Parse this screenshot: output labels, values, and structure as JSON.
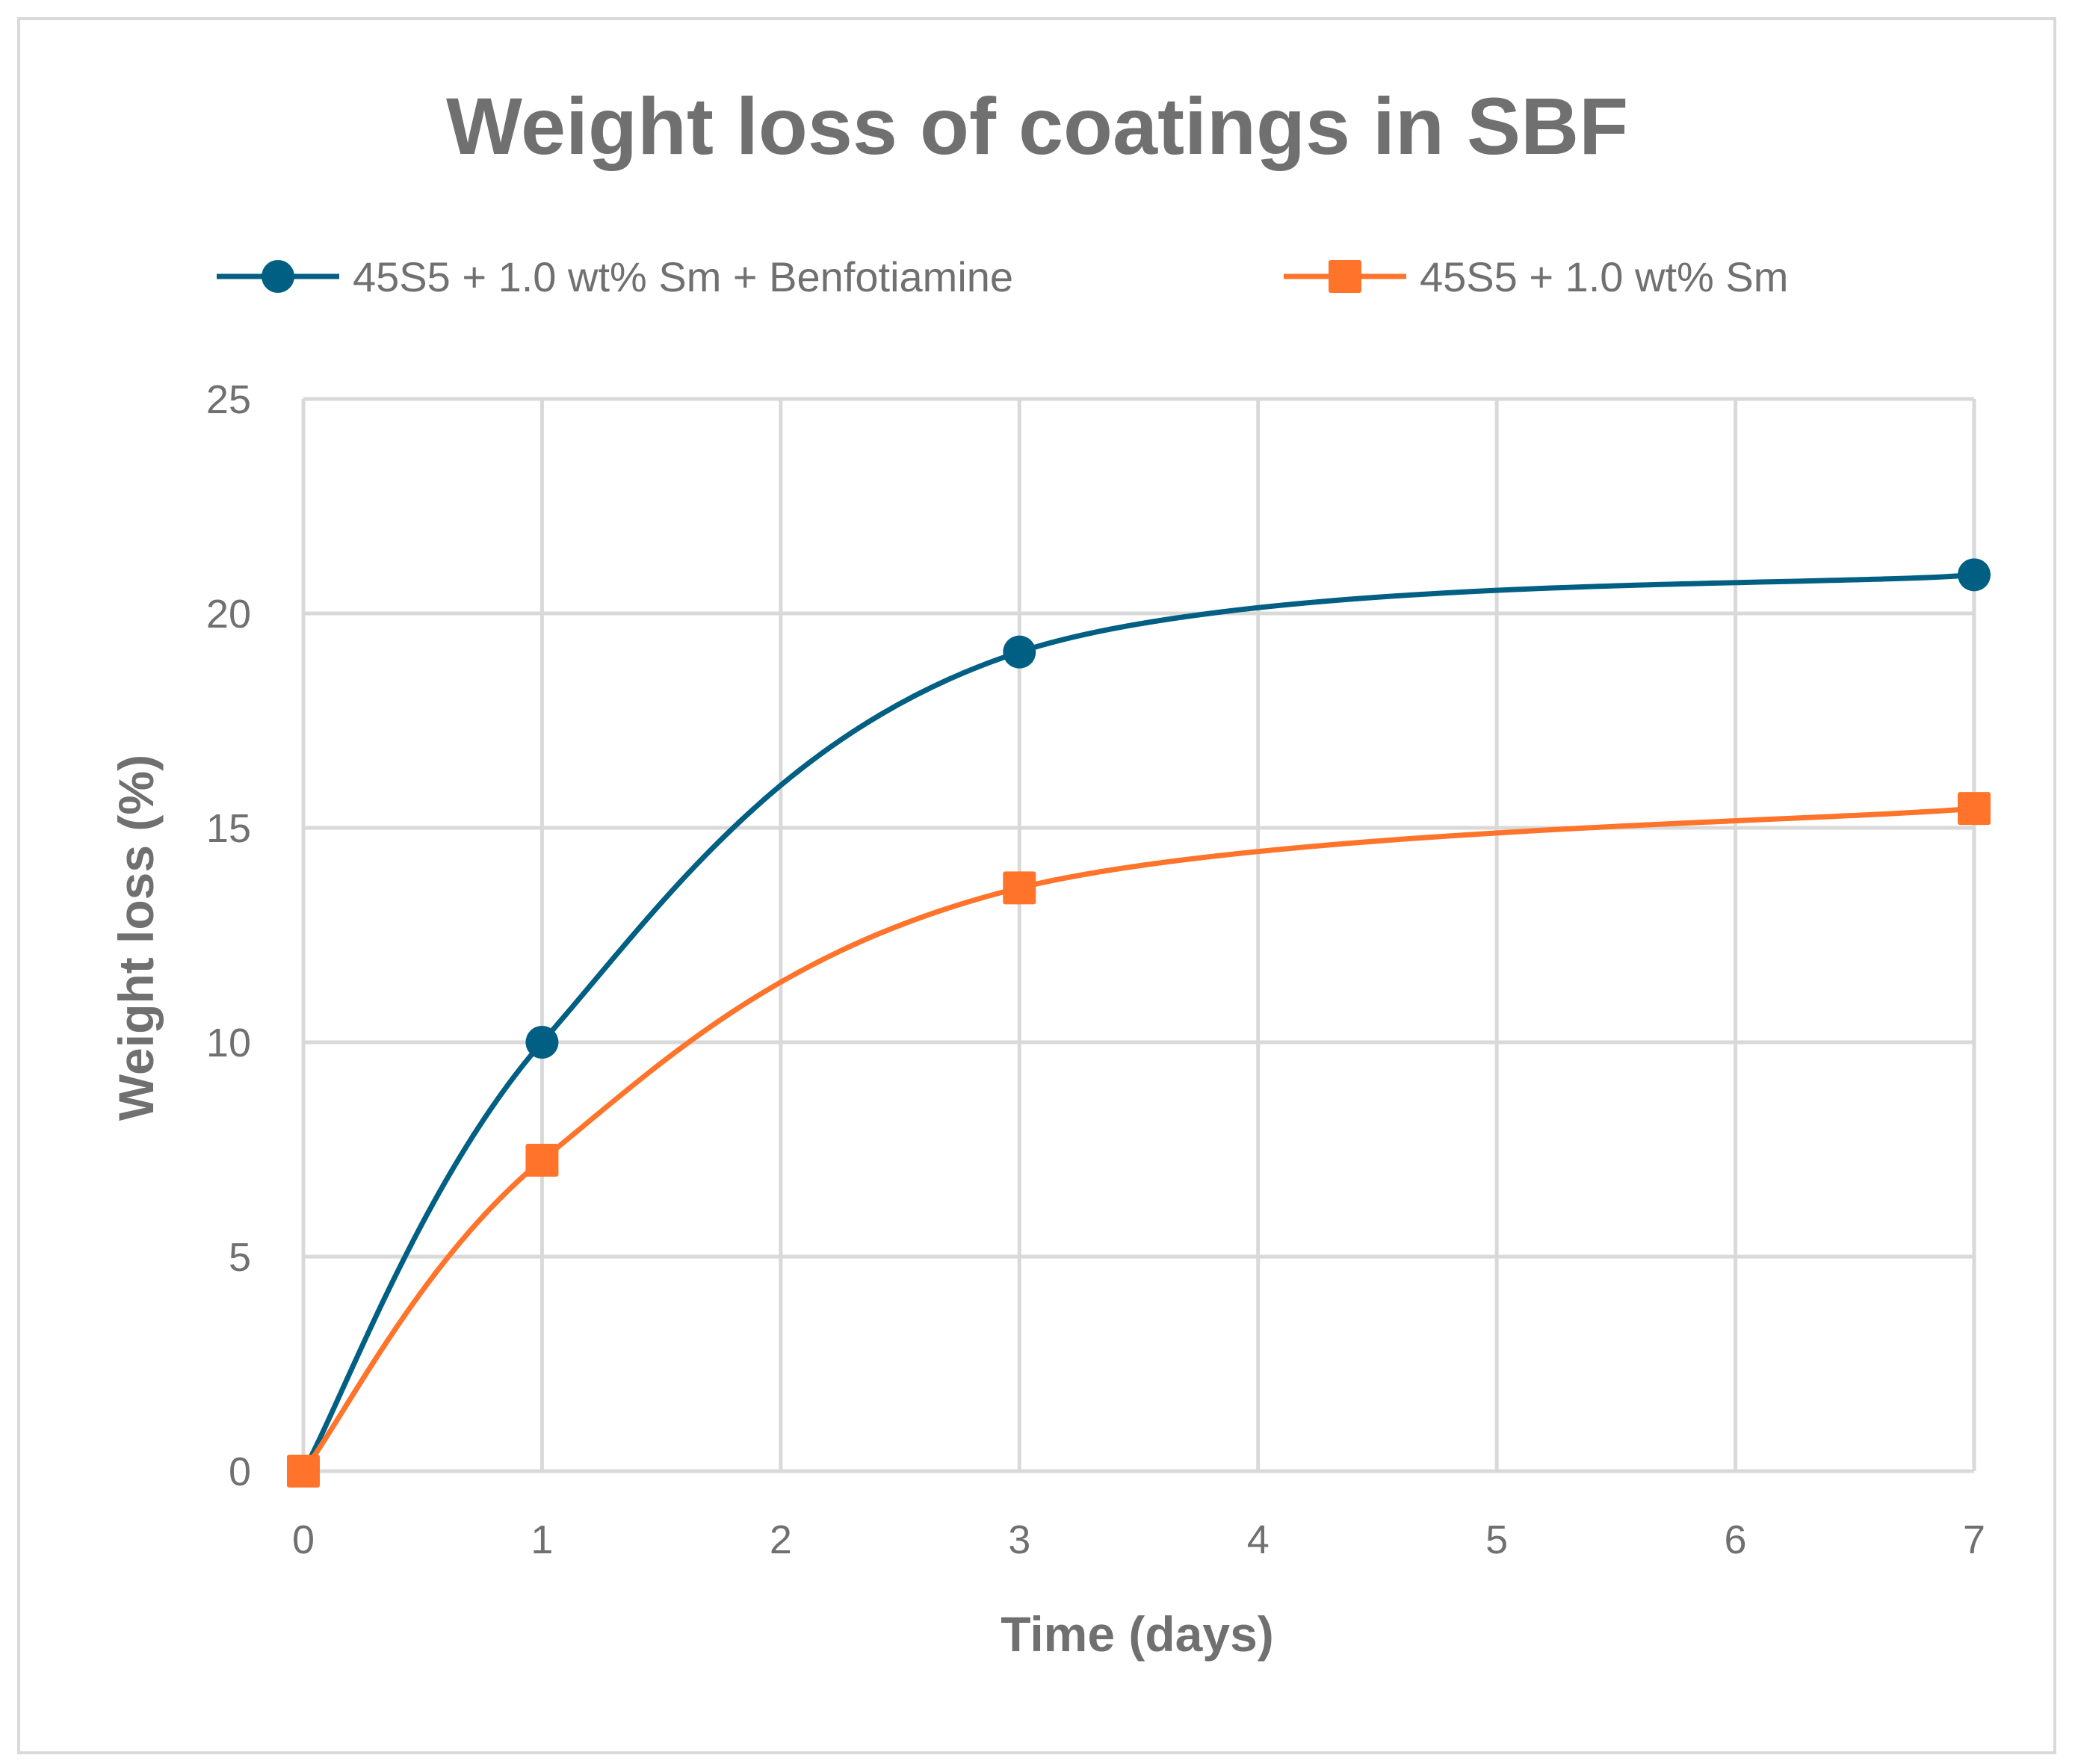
{
  "chart_data": {
    "type": "line",
    "title": "Weight loss of coatings in SBF",
    "xlabel": "Time (days)",
    "ylabel": "Weight loss (%)",
    "xlim": [
      0,
      7
    ],
    "ylim": [
      0,
      25
    ],
    "x_ticks": [
      0,
      1,
      2,
      3,
      4,
      5,
      6,
      7
    ],
    "y_ticks": [
      0,
      5,
      10,
      15,
      20,
      25
    ],
    "grid": true,
    "smooth": true,
    "legend_position": "top",
    "series": [
      {
        "name": "45S5 + 1.0 wt% Sm + Benfotiamine",
        "color": "#005F82",
        "marker": "circle",
        "x": [
          0,
          1,
          3,
          7
        ],
        "values": [
          0,
          10.0,
          19.1,
          20.9
        ]
      },
      {
        "name": "45S5 + 1.0 wt% Sm",
        "color": "#FF742A",
        "marker": "square",
        "x": [
          0,
          1,
          3,
          7
        ],
        "values": [
          0,
          7.25,
          13.6,
          15.45
        ]
      }
    ]
  }
}
